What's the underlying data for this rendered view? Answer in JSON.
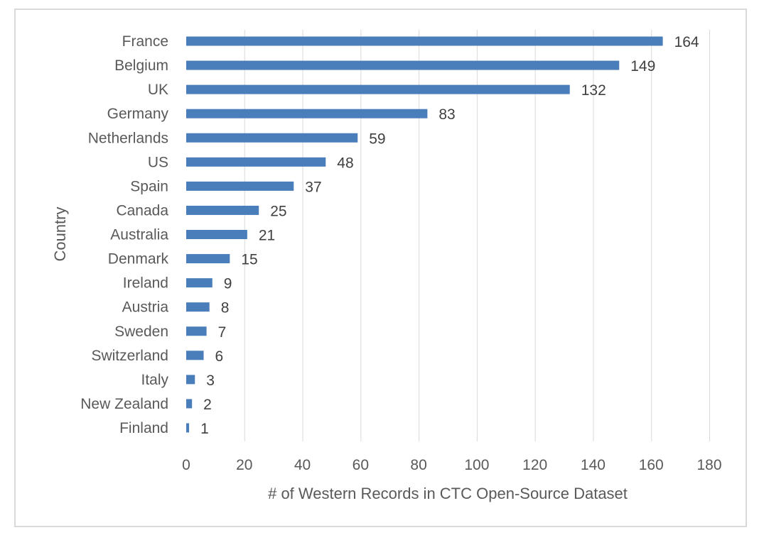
{
  "chart_data": {
    "type": "bar",
    "orientation": "horizontal",
    "categories": [
      "France",
      "Belgium",
      "UK",
      "Germany",
      "Netherlands",
      "US",
      "Spain",
      "Canada",
      "Australia",
      "Denmark",
      "Ireland",
      "Austria",
      "Sweden",
      "Switzerland",
      "Italy",
      "New Zealand",
      "Finland"
    ],
    "values": [
      164,
      149,
      132,
      83,
      59,
      48,
      37,
      25,
      21,
      15,
      9,
      8,
      7,
      6,
      3,
      2,
      1
    ],
    "xlabel": "# of Western Records in CTC Open-Source Dataset",
    "ylabel": "Country",
    "xlim": [
      0,
      180
    ],
    "xticks": [
      0,
      20,
      40,
      60,
      80,
      100,
      120,
      140,
      160,
      180
    ],
    "grid": "vertical",
    "legend": "none",
    "bar_color": "#4a7ebb",
    "data_labels": true
  }
}
